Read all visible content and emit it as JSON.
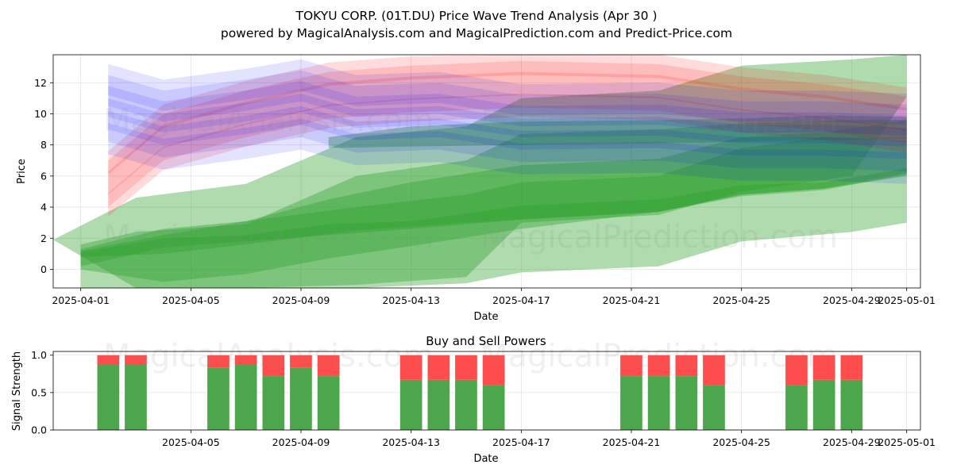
{
  "header": {
    "title": "TOKYU CORP. (01T.DU) Price Wave Trend Analysis (Apr 30 )",
    "subtitle": "powered by MagicalAnalysis.com and MagicalPrediction.com and Predict-Price.com"
  },
  "watermarks": [
    "MagicalAnalysis.com",
    "MagicalPrediction.com"
  ],
  "colors": {
    "green": "#2ca02c",
    "red": "#ff0000",
    "blue": "#0000ff",
    "buy": "#4ca64c",
    "sell": "#ff4c4c"
  },
  "chart_data": [
    {
      "type": "area",
      "title": "",
      "xlabel": "Date",
      "ylabel": "Price",
      "xlim": [
        "2025-03-31T00:00",
        "2025-05-01T12:00"
      ],
      "ylim": [
        -1.2,
        13.8
      ],
      "x_ticks": [
        "2025-04-01",
        "2025-04-05",
        "2025-04-09",
        "2025-04-13",
        "2025-04-17",
        "2025-04-21",
        "2025-04-25",
        "2025-04-29",
        "2025-05-01"
      ],
      "y_ticks": [
        0,
        2,
        4,
        6,
        8,
        10,
        12
      ],
      "grid": true,
      "series": [
        {
          "name": "green-wide-1",
          "color": "green",
          "opacity": 0.38,
          "x": [
            "2025-03-31",
            "2025-04-03",
            "2025-04-07",
            "2025-04-11",
            "2025-04-15",
            "2025-04-17",
            "2025-04-22",
            "2025-04-25",
            "2025-04-29",
            "2025-05-01"
          ],
          "upper": [
            1.9,
            4.6,
            5.5,
            8.5,
            9.2,
            11.0,
            11.5,
            13.1,
            13.5,
            14.2
          ],
          "lower": [
            1.9,
            -1.8,
            -1.5,
            -1.0,
            -0.5,
            3.0,
            3.5,
            5.0,
            6.0,
            11.1
          ]
        },
        {
          "name": "green-wide-2",
          "color": "green",
          "opacity": 0.38,
          "x": [
            "2025-04-01",
            "2025-04-03",
            "2025-04-07",
            "2025-04-11",
            "2025-04-15",
            "2025-04-17",
            "2025-04-22",
            "2025-04-25",
            "2025-04-29",
            "2025-05-01"
          ],
          "upper": [
            1.6,
            2.4,
            2.9,
            6.0,
            7.0,
            8.7,
            9.0,
            9.4,
            9.6,
            9.6
          ],
          "lower": [
            -1.5,
            -2.0,
            -1.8,
            -1.2,
            -0.9,
            -0.2,
            0.2,
            1.8,
            2.4,
            3.0
          ]
        },
        {
          "name": "green-mid-1",
          "color": "green",
          "opacity": 0.38,
          "x": [
            "2025-04-01",
            "2025-04-04",
            "2025-04-07",
            "2025-04-10",
            "2025-04-13",
            "2025-04-17",
            "2025-04-22",
            "2025-04-25",
            "2025-04-28",
            "2025-05-01"
          ],
          "upper": [
            1.3,
            2.6,
            3.1,
            4.5,
            5.6,
            6.7,
            7.1,
            8.5,
            8.8,
            9.6
          ],
          "lower": [
            0.0,
            -0.8,
            -0.3,
            0.7,
            1.5,
            2.6,
            3.7,
            4.7,
            5.1,
            6.1
          ]
        },
        {
          "name": "green-mid-2",
          "color": "green",
          "opacity": 0.38,
          "x": [
            "2025-04-01",
            "2025-04-04",
            "2025-04-07",
            "2025-04-11",
            "2025-04-15",
            "2025-04-17",
            "2025-04-22",
            "2025-04-25",
            "2025-04-28",
            "2025-05-01"
          ],
          "upper": [
            1.2,
            2.2,
            3.1,
            4.0,
            4.8,
            5.6,
            6.0,
            7.8,
            8.5,
            8.5
          ],
          "lower": [
            0.8,
            1.0,
            1.6,
            2.5,
            3.0,
            3.2,
            3.7,
            4.8,
            5.2,
            6.2
          ]
        },
        {
          "name": "green-narrow",
          "color": "green",
          "opacity": 0.38,
          "x": [
            "2025-04-01",
            "2025-04-04",
            "2025-04-07",
            "2025-04-10",
            "2025-04-13",
            "2025-04-17",
            "2025-04-22",
            "2025-04-25",
            "2025-04-28",
            "2025-05-01"
          ],
          "upper": [
            1.1,
            2.0,
            2.2,
            2.9,
            3.1,
            4.1,
            4.5,
            5.4,
            5.6,
            6.5
          ],
          "lower": [
            0.2,
            1.4,
            1.8,
            2.2,
            2.6,
            3.2,
            3.7,
            4.8,
            5.2,
            6.0
          ]
        },
        {
          "name": "green-high",
          "color": "green",
          "opacity": 0.38,
          "x": [
            "2025-04-10",
            "2025-04-13",
            "2025-04-17",
            "2025-04-22",
            "2025-04-25",
            "2025-04-28",
            "2025-05-01"
          ],
          "upper": [
            8.5,
            9.2,
            9.5,
            9.6,
            9.7,
            9.9,
            9.8
          ],
          "lower": [
            7.8,
            7.9,
            8.0,
            8.1,
            8.2,
            8.3,
            8.4
          ]
        },
        {
          "name": "red-1",
          "color": "red",
          "opacity": 0.14,
          "x": [
            "2025-04-02",
            "2025-04-04",
            "2025-04-07",
            "2025-04-10",
            "2025-04-13",
            "2025-04-17",
            "2025-04-22",
            "2025-04-25",
            "2025-04-28",
            "2025-05-01"
          ],
          "upper": [
            5.5,
            8.5,
            10.0,
            11.2,
            11.6,
            11.9,
            11.7,
            10.9,
            10.4,
            9.6
          ],
          "lower": [
            4.0,
            7.0,
            8.5,
            9.7,
            10.1,
            10.4,
            10.2,
            9.4,
            8.9,
            8.1
          ]
        },
        {
          "name": "red-2",
          "color": "red",
          "opacity": 0.14,
          "x": [
            "2025-04-02",
            "2025-04-04",
            "2025-04-07",
            "2025-04-10",
            "2025-04-13",
            "2025-04-17",
            "2025-04-22",
            "2025-04-25",
            "2025-04-28",
            "2025-05-01"
          ],
          "upper": [
            6.3,
            9.3,
            10.8,
            12.0,
            12.4,
            12.7,
            12.5,
            11.7,
            11.2,
            10.4
          ],
          "lower": [
            4.8,
            7.8,
            9.3,
            10.5,
            10.9,
            11.2,
            11.0,
            10.2,
            9.7,
            8.9
          ]
        },
        {
          "name": "red-3",
          "color": "red",
          "opacity": 0.14,
          "x": [
            "2025-04-02",
            "2025-04-04",
            "2025-04-07",
            "2025-04-10",
            "2025-04-13",
            "2025-04-17",
            "2025-04-22",
            "2025-04-25",
            "2025-04-28",
            "2025-05-01"
          ],
          "upper": [
            4.9,
            7.9,
            9.4,
            10.6,
            11.0,
            11.3,
            11.1,
            10.3,
            9.8,
            9.0
          ],
          "lower": [
            3.4,
            6.4,
            7.9,
            9.1,
            9.5,
            9.8,
            9.6,
            8.8,
            8.3,
            7.5
          ]
        },
        {
          "name": "red-4",
          "color": "red",
          "opacity": 0.14,
          "x": [
            "2025-04-02",
            "2025-04-04",
            "2025-04-07",
            "2025-04-10",
            "2025-04-13",
            "2025-04-17",
            "2025-04-22",
            "2025-04-25",
            "2025-04-28",
            "2025-05-01"
          ],
          "upper": [
            7.0,
            10.0,
            11.5,
            12.7,
            13.1,
            13.4,
            13.2,
            12.4,
            11.9,
            11.1
          ],
          "lower": [
            5.5,
            8.5,
            10.0,
            11.2,
            11.6,
            11.9,
            11.7,
            10.9,
            10.4,
            9.6
          ]
        },
        {
          "name": "red-5",
          "color": "red",
          "opacity": 0.14,
          "x": [
            "2025-04-02",
            "2025-04-04",
            "2025-04-07",
            "2025-04-10",
            "2025-04-13",
            "2025-04-17",
            "2025-04-22",
            "2025-04-25",
            "2025-04-28",
            "2025-05-01"
          ],
          "upper": [
            7.6,
            10.6,
            12.1,
            13.3,
            13.7,
            14.0,
            13.8,
            13.0,
            12.5,
            11.7
          ],
          "lower": [
            6.1,
            9.1,
            10.6,
            11.8,
            12.2,
            12.5,
            12.3,
            11.5,
            11.0,
            10.2
          ]
        },
        {
          "name": "blue-1",
          "color": "blue",
          "opacity": 0.11,
          "x": [
            "2025-04-02",
            "2025-04-04",
            "2025-04-07",
            "2025-04-09",
            "2025-04-11",
            "2025-04-14",
            "2025-04-17",
            "2025-04-22",
            "2025-04-25",
            "2025-04-28",
            "2025-05-01"
          ],
          "upper": [
            12.5,
            11.5,
            12.2,
            12.8,
            11.8,
            12.0,
            11.2,
            11.3,
            10.8,
            10.8,
            10.6
          ],
          "lower": [
            10.5,
            9.5,
            10.2,
            10.8,
            9.8,
            10.0,
            9.2,
            9.3,
            8.8,
            8.8,
            8.6
          ]
        },
        {
          "name": "blue-2",
          "color": "blue",
          "opacity": 0.11,
          "x": [
            "2025-04-02",
            "2025-04-04",
            "2025-04-07",
            "2025-04-09",
            "2025-04-11",
            "2025-04-14",
            "2025-04-17",
            "2025-04-22",
            "2025-04-25",
            "2025-04-28",
            "2025-05-01"
          ],
          "upper": [
            11.0,
            10.0,
            10.7,
            11.3,
            10.3,
            10.5,
            9.7,
            9.8,
            9.3,
            9.3,
            9.1
          ],
          "lower": [
            9.0,
            8.0,
            8.7,
            9.3,
            8.3,
            8.5,
            7.7,
            7.8,
            7.3,
            7.3,
            7.1
          ]
        },
        {
          "name": "blue-3",
          "color": "blue",
          "opacity": 0.11,
          "x": [
            "2025-04-02",
            "2025-04-04",
            "2025-04-07",
            "2025-04-09",
            "2025-04-11",
            "2025-04-14",
            "2025-04-17",
            "2025-04-22",
            "2025-04-25",
            "2025-04-28",
            "2025-05-01"
          ],
          "upper": [
            11.8,
            10.8,
            11.5,
            12.1,
            11.1,
            11.3,
            10.5,
            10.6,
            10.1,
            10.1,
            9.9
          ],
          "lower": [
            9.8,
            8.8,
            9.5,
            10.1,
            9.1,
            9.3,
            8.5,
            8.6,
            8.1,
            8.1,
            7.9
          ]
        },
        {
          "name": "blue-4",
          "color": "blue",
          "opacity": 0.11,
          "x": [
            "2025-04-02",
            "2025-04-04",
            "2025-04-07",
            "2025-04-09",
            "2025-04-11",
            "2025-04-14",
            "2025-04-17",
            "2025-04-22",
            "2025-04-25",
            "2025-04-28",
            "2025-05-01"
          ],
          "upper": [
            10.2,
            9.2,
            9.9,
            10.5,
            9.5,
            9.7,
            8.9,
            9.0,
            8.5,
            8.5,
            8.3
          ],
          "lower": [
            8.2,
            7.2,
            7.9,
            8.5,
            7.5,
            7.7,
            6.9,
            7.0,
            6.5,
            6.5,
            6.3
          ]
        },
        {
          "name": "blue-5",
          "color": "blue",
          "opacity": 0.11,
          "x": [
            "2025-04-02",
            "2025-04-04",
            "2025-04-07",
            "2025-04-09",
            "2025-04-11",
            "2025-04-14",
            "2025-04-17",
            "2025-04-22",
            "2025-04-25",
            "2025-04-28",
            "2025-05-01"
          ],
          "upper": [
            13.2,
            12.2,
            12.9,
            13.5,
            12.5,
            12.7,
            11.9,
            12.0,
            11.5,
            11.5,
            11.3
          ],
          "lower": [
            11.2,
            10.2,
            10.9,
            11.5,
            10.5,
            10.7,
            9.9,
            10.0,
            9.5,
            9.5,
            9.3
          ]
        },
        {
          "name": "blue-6",
          "color": "blue",
          "opacity": 0.11,
          "x": [
            "2025-04-02",
            "2025-04-04",
            "2025-04-07",
            "2025-04-09",
            "2025-04-11",
            "2025-04-14",
            "2025-04-17",
            "2025-04-22",
            "2025-04-25",
            "2025-04-28",
            "2025-05-01"
          ],
          "upper": [
            9.4,
            8.4,
            9.1,
            9.7,
            8.7,
            8.9,
            8.1,
            8.2,
            7.7,
            7.7,
            7.5
          ],
          "lower": [
            7.4,
            6.4,
            7.1,
            7.7,
            6.7,
            6.9,
            6.1,
            6.2,
            5.7,
            5.7,
            5.5
          ]
        }
      ]
    },
    {
      "type": "bar",
      "title": "Buy and Sell Powers",
      "xlabel": "Date",
      "ylabel": "Signal Strength",
      "ylim": [
        0,
        1.05
      ],
      "y_ticks": [
        0.0,
        0.5,
        1.0
      ],
      "x_ticks": [
        "2025-04-05",
        "2025-04-09",
        "2025-04-13",
        "2025-04-17",
        "2025-04-21",
        "2025-04-25",
        "2025-04-29",
        "2025-05-01"
      ],
      "xlim": [
        "2025-03-31T00:00",
        "2025-05-01T12:00"
      ],
      "grid": true,
      "categories": [
        "2025-04-02",
        "2025-04-03",
        "2025-04-06",
        "2025-04-07",
        "2025-04-08",
        "2025-04-09",
        "2025-04-10",
        "2025-04-13",
        "2025-04-14",
        "2025-04-15",
        "2025-04-16",
        "2025-04-21",
        "2025-04-22",
        "2025-04-23",
        "2025-04-24",
        "2025-04-27",
        "2025-04-28",
        "2025-04-29"
      ],
      "series": [
        {
          "name": "Buy",
          "color": "buy",
          "values": [
            0.88,
            0.88,
            0.83,
            0.88,
            0.72,
            0.83,
            0.72,
            0.67,
            0.67,
            0.67,
            0.6,
            0.72,
            0.72,
            0.72,
            0.6,
            0.6,
            0.67,
            0.67
          ]
        },
        {
          "name": "Sell",
          "color": "sell",
          "values": [
            0.12,
            0.12,
            0.17,
            0.12,
            0.28,
            0.17,
            0.28,
            0.33,
            0.33,
            0.33,
            0.4,
            0.28,
            0.28,
            0.28,
            0.4,
            0.4,
            0.33,
            0.33
          ]
        }
      ]
    }
  ]
}
